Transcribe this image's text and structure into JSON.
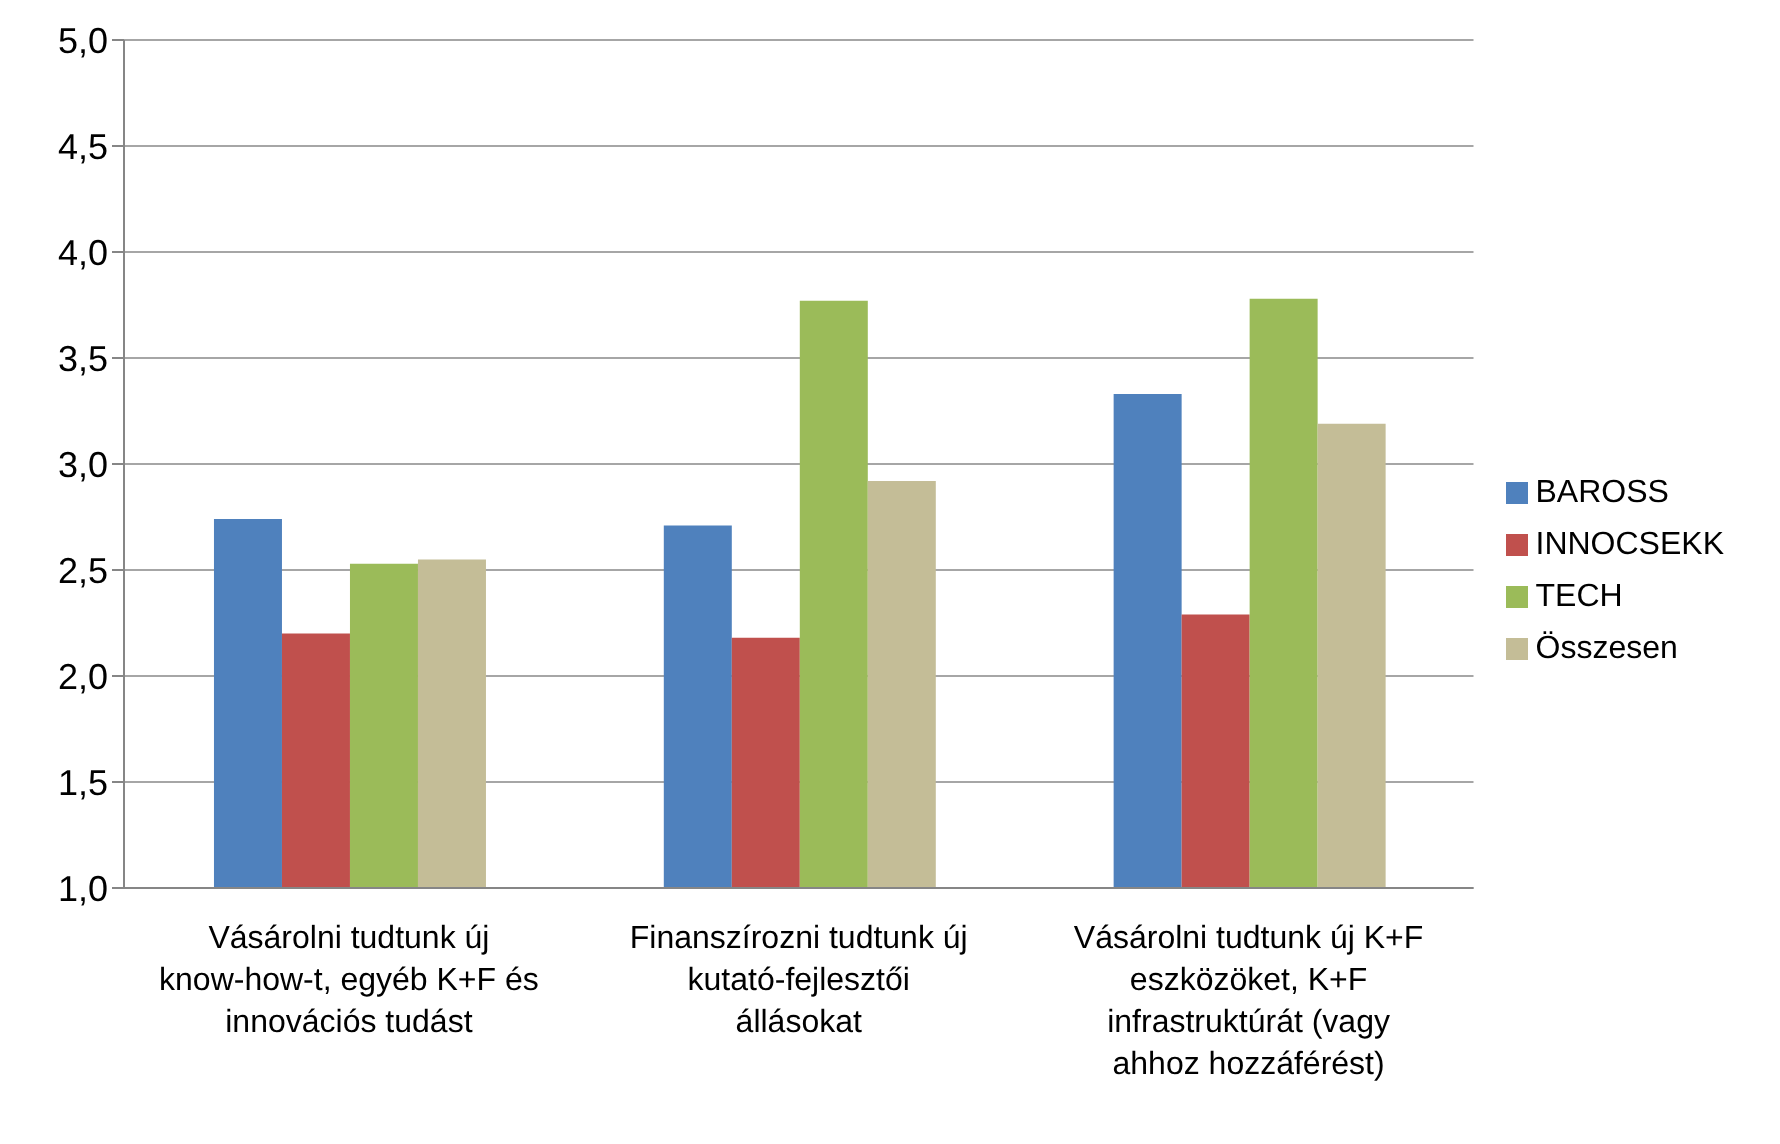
{
  "chart_data": {
    "type": "bar",
    "categories": [
      "Vásárolni tudtunk új know-how-t, egyéb K+F és innovációs tudást",
      "Finanszírozni tudtunk új kutató-fejlesztői állásokat",
      "Vásárolni tudtunk új K+F eszközöket, K+F infrastruktúrát (vagy ahhoz hozzáférést)"
    ],
    "series": [
      {
        "name": "BAROSS",
        "color": "#4f81bd",
        "values": [
          2.74,
          2.71,
          3.33
        ]
      },
      {
        "name": "INNOCSEKK",
        "color": "#c0504d",
        "values": [
          2.2,
          2.18,
          2.29
        ]
      },
      {
        "name": "TECH",
        "color": "#9bbb59",
        "values": [
          2.53,
          3.77,
          3.78
        ]
      },
      {
        "name": "Összesen",
        "color": "#c4bd97",
        "values": [
          2.55,
          2.92,
          3.19
        ]
      }
    ],
    "ylim": [
      1,
      5
    ],
    "yticks": [
      {
        "value": 1,
        "label": "1,0"
      },
      {
        "value": 1.5,
        "label": "1,5"
      },
      {
        "value": 2,
        "label": "2,0"
      },
      {
        "value": 2.5,
        "label": "2,5"
      },
      {
        "value": 3,
        "label": "3,0"
      },
      {
        "value": 3.5,
        "label": "3,5"
      },
      {
        "value": 4,
        "label": "4,0"
      },
      {
        "value": 4.5,
        "label": "4,5"
      },
      {
        "value": 5,
        "label": "5,0"
      }
    ],
    "grid": "y",
    "legend": "right"
  }
}
